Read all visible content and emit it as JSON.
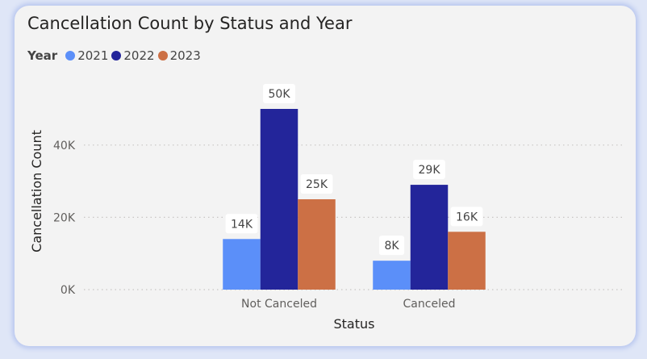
{
  "chart_data": {
    "type": "bar",
    "title": "Cancellation Count by Status and Year",
    "xlabel": "Status",
    "ylabel": "Cancellation Count",
    "legend_title": "Year",
    "legend_position": "top-left",
    "grid": true,
    "ylim": [
      0,
      50000
    ],
    "yticks": [
      0,
      20000,
      40000
    ],
    "ytick_labels": [
      "0K",
      "20K",
      "40K"
    ],
    "categories": [
      "Not Canceled",
      "Canceled"
    ],
    "series": [
      {
        "name": "2021",
        "color": "#5b8ff9",
        "values": [
          14000,
          8000
        ],
        "labels": [
          "14K",
          "8K"
        ]
      },
      {
        "name": "2022",
        "color": "#23259a",
        "values": [
          50000,
          29000
        ],
        "labels": [
          "50K",
          "29K"
        ]
      },
      {
        "name": "2023",
        "color": "#cc7045",
        "values": [
          25000,
          16000
        ],
        "labels": [
          "25K",
          "16K"
        ]
      }
    ]
  }
}
